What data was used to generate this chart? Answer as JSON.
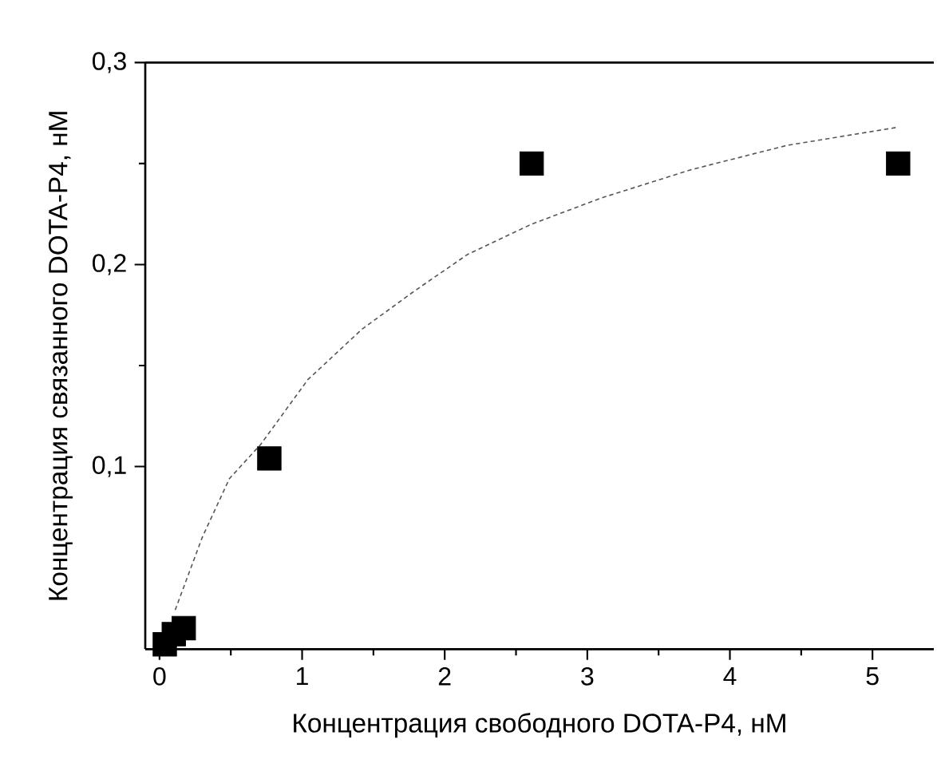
{
  "chart_data": {
    "type": "scatter",
    "xlabel": "Концентрация свободного DOTA-P4, нМ",
    "ylabel": "Концентрация связанного DOTA-P4, нМ",
    "xlim": [
      -0.1,
      5.43
    ],
    "ylim": [
      0.0096,
      0.3
    ],
    "xticks": [
      0,
      1,
      2,
      3,
      4,
      5
    ],
    "yticks": [
      {
        "value": 0.1,
        "label": "0,1"
      },
      {
        "value": 0.2,
        "label": "0,2"
      },
      {
        "value": 0.3,
        "label": "0,3"
      }
    ],
    "grid": false,
    "series": [
      {
        "color": "#000000",
        "marker": "square",
        "x": [
          0.037,
          0.1,
          0.17,
          0.77,
          2.61,
          5.18
        ],
        "values": [
          0.012,
          0.017,
          0.02,
          0.104,
          0.25,
          0.25
        ]
      },
      {
        "type": "line",
        "color": "#555555",
        "line_style": "dashed",
        "marker": "none",
        "x": [
          0.11,
          0.3,
          0.49,
          0.71,
          1.04,
          1.42,
          1.79,
          2.16,
          2.61,
          3.1,
          3.73,
          4.4,
          5.18
        ],
        "values": [
          0.029,
          0.065,
          0.094,
          0.111,
          0.143,
          0.168,
          0.187,
          0.205,
          0.22,
          0.233,
          0.247,
          0.259,
          0.268
        ]
      }
    ]
  }
}
